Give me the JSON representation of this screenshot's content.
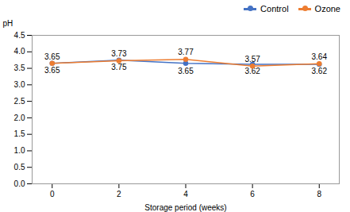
{
  "chart_data": {
    "type": "line",
    "x": [
      0,
      2,
      4,
      6,
      8
    ],
    "series": [
      {
        "name": "Control",
        "color": "#4472C4",
        "values": [
          3.65,
          3.75,
          3.65,
          3.62,
          3.62
        ],
        "errors": [
          0.03,
          0.03,
          0.05,
          0.03,
          0.03
        ]
      },
      {
        "name": "Ozone",
        "color": "#ED7D31",
        "values": [
          3.65,
          3.73,
          3.77,
          3.57,
          3.64
        ],
        "errors": [
          0.03,
          0.04,
          0.04,
          0.03,
          0.03
        ]
      }
    ],
    "xlabel": "Storage period (weeks)",
    "ylabel": "pH",
    "xlim": [
      -0.6,
      8.6
    ],
    "xticks": [
      0,
      2,
      4,
      6,
      8
    ],
    "ylim": [
      0.0,
      4.5
    ],
    "yticks": [
      {
        "value": 0.0,
        "label": "0.0"
      },
      0.5,
      {
        "value": 1.0,
        "label": "1.0"
      },
      1.5,
      {
        "value": 2.0,
        "label": "2.0"
      },
      2.5,
      {
        "value": 3.0,
        "label": "3.0"
      },
      3.5,
      {
        "value": 4.0,
        "label": "4.0"
      },
      4.5
    ],
    "marker": "circle",
    "data_labels": true,
    "grid": false,
    "legend": "upper right"
  }
}
